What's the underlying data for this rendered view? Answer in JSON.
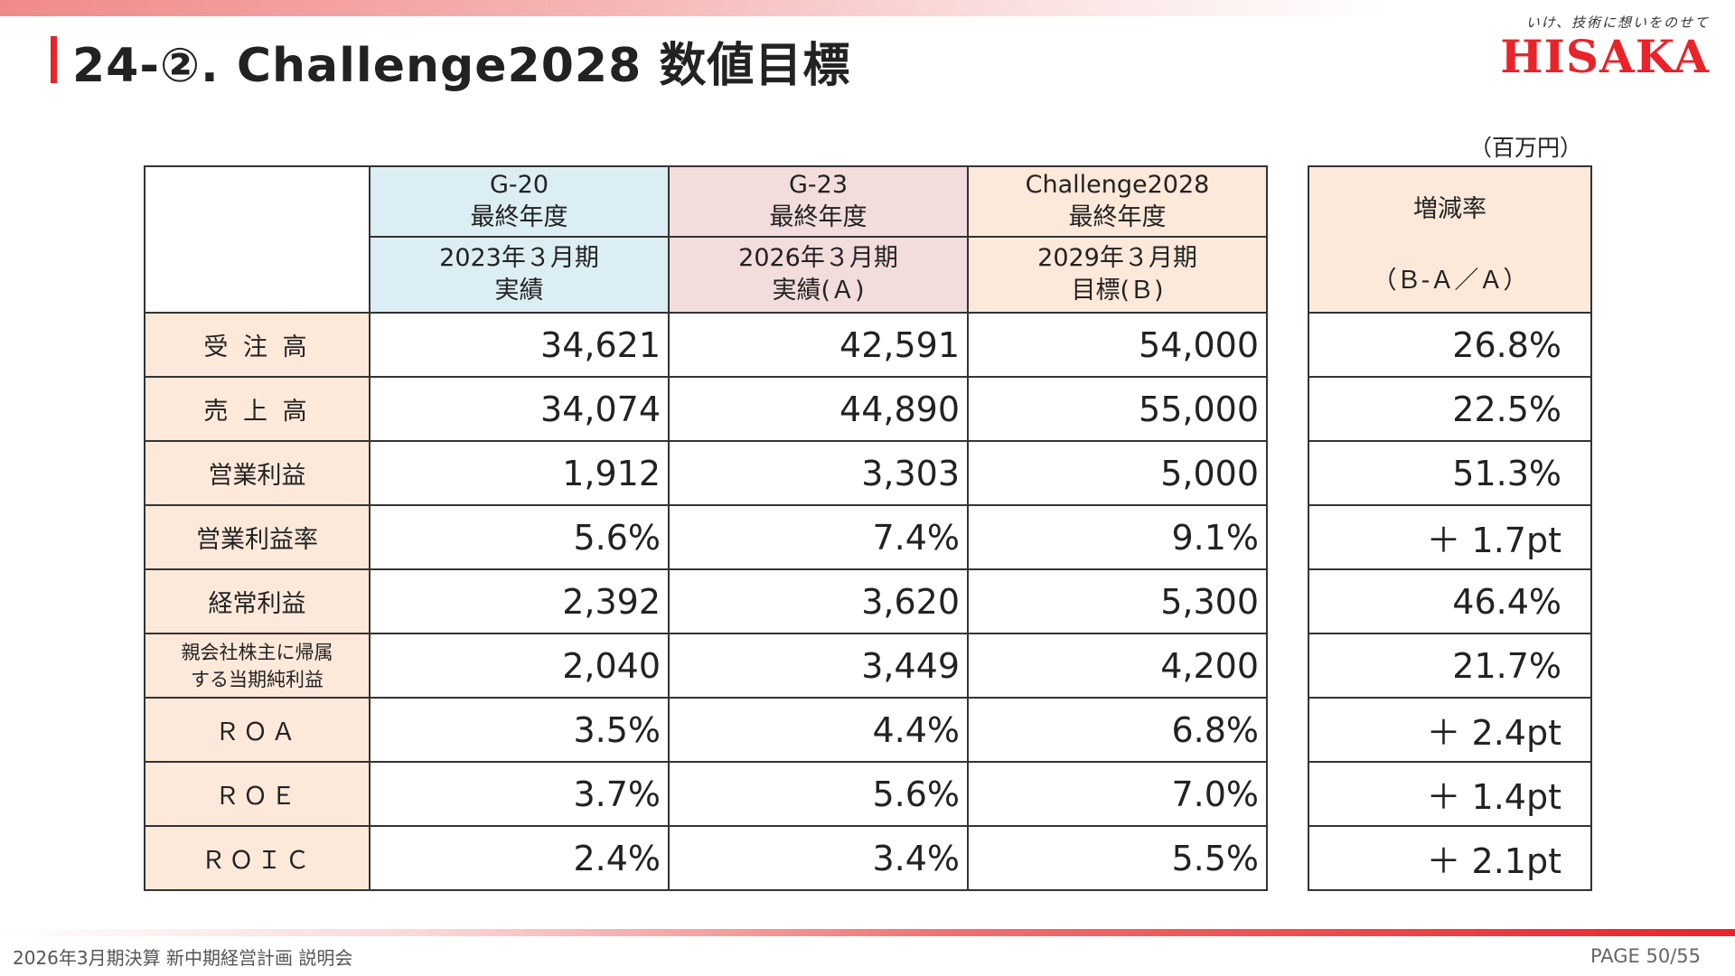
{
  "header": {
    "title": "24-②. Challenge2028 数値目標",
    "logo_tagline": "いけ、技術に想いをのせて",
    "logo_wordmark": "HISAKA"
  },
  "unit_label": "（百万円）",
  "table": {
    "columns": [
      {
        "line1": "G-20",
        "line2": "最終年度",
        "line3": "2023年３月期",
        "line4": "実績"
      },
      {
        "line1": "G-23",
        "line2": "最終年度",
        "line3": "2026年３月期",
        "line4": "実績(Ａ)"
      },
      {
        "line1": "Challenge2028",
        "line2": "最終年度",
        "line3": "2029年３月期",
        "line4": "目標(Ｂ)"
      }
    ],
    "rate_header": {
      "line1": "増減率",
      "line2": "（Ｂ-Ａ／Ａ）"
    },
    "rows": [
      {
        "label": "受 注 高",
        "g20": "34,621",
        "g23": "42,591",
        "c28": "54,000",
        "rate": "26.8%"
      },
      {
        "label": "売 上 高",
        "g20": "34,074",
        "g23": "44,890",
        "c28": "55,000",
        "rate": "22.5%"
      },
      {
        "label": "営業利益",
        "g20": "1,912",
        "g23": "3,303",
        "c28": "5,000",
        "rate": "51.3%"
      },
      {
        "label": "営業利益率",
        "g20": "5.6%",
        "g23": "7.4%",
        "c28": "9.1%",
        "rate": "＋ 1.7pt"
      },
      {
        "label": "経常利益",
        "g20": "2,392",
        "g23": "3,620",
        "c28": "5,300",
        "rate": "46.4%"
      },
      {
        "label_line1": "親会社株主に帰属",
        "label_line2": "する当期純利益",
        "g20": "2,040",
        "g23": "3,449",
        "c28": "4,200",
        "rate": "21.7%"
      },
      {
        "label": "ＲＯＡ",
        "g20": "3.5%",
        "g23": "4.4%",
        "c28": "6.8%",
        "rate": "＋ 2.4pt"
      },
      {
        "label": "ＲＯＥ",
        "g20": "3.7%",
        "g23": "5.6%",
        "c28": "7.0%",
        "rate": "＋ 1.4pt"
      },
      {
        "label": "ＲＯＩＣ",
        "g20": "2.4%",
        "g23": "3.4%",
        "c28": "5.5%",
        "rate": "＋ 2.1pt"
      }
    ]
  },
  "footer": {
    "left": "2026年3月期決算 新中期経営計画 説明会",
    "page": "PAGE 50/55"
  },
  "colors": {
    "accent_red": "#e8242a",
    "g20_header": "#dbeef4",
    "g23_header": "#f2dcdc",
    "challenge_header": "#fde9d9",
    "row_label_bg": "#fde9d9"
  }
}
